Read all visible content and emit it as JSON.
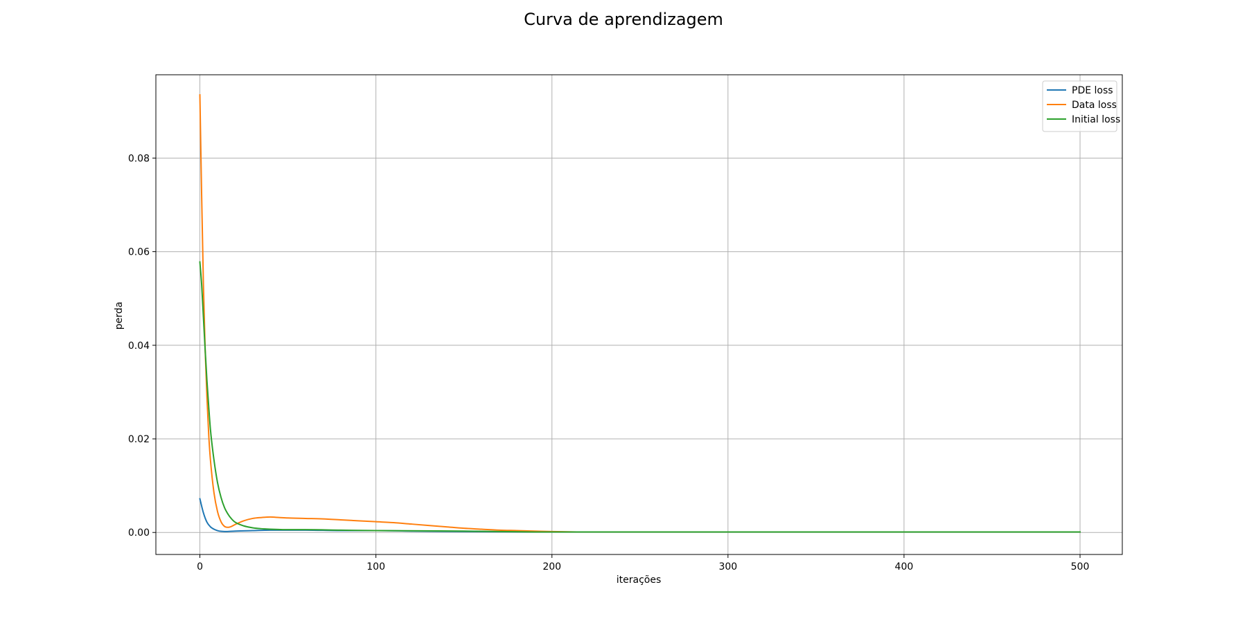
{
  "chart_data": {
    "type": "line",
    "title": "Curva de aprendizagem",
    "xlabel": "iterações",
    "ylabel": "perda",
    "xlim": [
      -25,
      524
    ],
    "ylim": [
      -0.0047,
      0.0978
    ],
    "xticks": [
      0,
      100,
      200,
      300,
      400,
      500
    ],
    "xtick_labels": [
      "0",
      "100",
      "200",
      "300",
      "400",
      "500"
    ],
    "yticks": [
      0.0,
      0.02,
      0.04,
      0.06,
      0.08
    ],
    "ytick_labels": [
      "0.00",
      "0.02",
      "0.04",
      "0.06",
      "0.08"
    ],
    "grid": true,
    "legend_position": "top-right",
    "series": [
      {
        "name": "PDE loss",
        "color": "#1f77b4",
        "x": [
          0,
          2,
          4,
          6,
          8,
          10,
          12,
          15,
          20,
          30,
          40,
          50,
          60,
          80,
          100,
          120,
          150,
          200,
          250,
          300,
          400,
          500
        ],
        "y": [
          0.0072,
          0.0042,
          0.0022,
          0.0012,
          0.0007,
          0.0004,
          0.00025,
          0.0002,
          0.0003,
          0.0004,
          0.0005,
          0.0005,
          0.0005,
          0.0004,
          0.0004,
          0.0003,
          0.0002,
          0.0001,
          0.0001,
          0.0001,
          0.0001,
          0.0001
        ]
      },
      {
        "name": "Data loss",
        "color": "#ff7f0e",
        "x": [
          0,
          1,
          2,
          3,
          4,
          5,
          6,
          8,
          10,
          12,
          14,
          16,
          18,
          20,
          25,
          30,
          35,
          40,
          45,
          50,
          60,
          70,
          80,
          90,
          100,
          110,
          120,
          130,
          140,
          150,
          160,
          170,
          180,
          190,
          200,
          220,
          250,
          300,
          400,
          500
        ],
        "y": [
          0.0935,
          0.072,
          0.053,
          0.039,
          0.029,
          0.021,
          0.0155,
          0.0085,
          0.0045,
          0.0023,
          0.0013,
          0.0011,
          0.0013,
          0.0017,
          0.0025,
          0.003,
          0.0032,
          0.0033,
          0.0032,
          0.0031,
          0.003,
          0.0029,
          0.0027,
          0.0025,
          0.0023,
          0.0021,
          0.0018,
          0.0015,
          0.0012,
          0.0009,
          0.0007,
          0.0005,
          0.0004,
          0.0003,
          0.0002,
          0.0001,
          0.0001,
          0.0001,
          0.0001,
          0.0001
        ]
      },
      {
        "name": "Initial loss",
        "color": "#2ca02c",
        "x": [
          0,
          1,
          2,
          3,
          4,
          5,
          6,
          8,
          10,
          12,
          14,
          16,
          18,
          20,
          25,
          30,
          35,
          40,
          50,
          60,
          80,
          100,
          150,
          200,
          250,
          300,
          400,
          500
        ],
        "y": [
          0.0578,
          0.053,
          0.046,
          0.039,
          0.0325,
          0.027,
          0.022,
          0.0155,
          0.0107,
          0.0075,
          0.0053,
          0.0039,
          0.0029,
          0.0022,
          0.0014,
          0.001,
          0.0008,
          0.0007,
          0.0006,
          0.0006,
          0.0005,
          0.0004,
          0.0003,
          0.0001,
          0.0001,
          0.0001,
          0.0001,
          0.0001
        ]
      }
    ]
  }
}
